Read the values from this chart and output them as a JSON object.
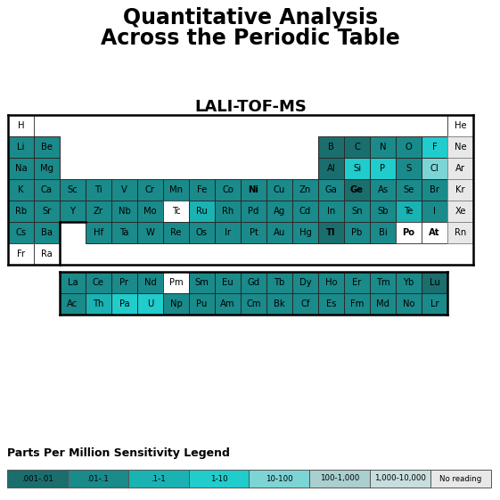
{
  "title_line1": "Quantitative Analysis",
  "title_line2": "Across the Periodic Table",
  "subtitle": "LALI-TOF-MS",
  "legend_labels": [
    ".001-.01",
    ".01-.1",
    ".1-1",
    "1-10",
    "10-100",
    "100-1,000",
    "1,000-10,000",
    "No reading"
  ],
  "legend_colors": [
    "#1a6e6e",
    "#1a8a8a",
    "#1ab2b2",
    "#20cccc",
    "#7dd4d4",
    "#aacfcf",
    "#c8dede",
    "#e8e8e8"
  ],
  "colors": {
    "dark1": "#1a6e6e",
    "dark2": "#1a8a8a",
    "med": "#1ab2b2",
    "bright": "#20cccc",
    "light": "#7dd4d4",
    "vlight": "#aacfcf",
    "pale": "#c8dede",
    "white": "#ffffff",
    "noread": "#e8e8e8"
  },
  "bold_elements": [
    "Ni",
    "Ge",
    "Tl",
    "Po",
    "At"
  ],
  "elements": {
    "H": {
      "row": 0,
      "col": 0,
      "color": "white"
    },
    "He": {
      "row": 0,
      "col": 17,
      "color": "white"
    },
    "Li": {
      "row": 1,
      "col": 0,
      "color": "dark2"
    },
    "Be": {
      "row": 1,
      "col": 1,
      "color": "dark2"
    },
    "B": {
      "row": 1,
      "col": 12,
      "color": "dark1"
    },
    "C": {
      "row": 1,
      "col": 13,
      "color": "dark1"
    },
    "N": {
      "row": 1,
      "col": 14,
      "color": "dark2"
    },
    "O": {
      "row": 1,
      "col": 15,
      "color": "dark2"
    },
    "F": {
      "row": 1,
      "col": 16,
      "color": "bright"
    },
    "Ne": {
      "row": 1,
      "col": 17,
      "color": "noread"
    },
    "Na": {
      "row": 2,
      "col": 0,
      "color": "dark2"
    },
    "Mg": {
      "row": 2,
      "col": 1,
      "color": "dark2"
    },
    "Al": {
      "row": 2,
      "col": 12,
      "color": "dark1"
    },
    "Si": {
      "row": 2,
      "col": 13,
      "color": "bright"
    },
    "P": {
      "row": 2,
      "col": 14,
      "color": "bright"
    },
    "S": {
      "row": 2,
      "col": 15,
      "color": "dark2"
    },
    "Cl": {
      "row": 2,
      "col": 16,
      "color": "light"
    },
    "Ar": {
      "row": 2,
      "col": 17,
      "color": "noread"
    },
    "K": {
      "row": 3,
      "col": 0,
      "color": "dark2"
    },
    "Ca": {
      "row": 3,
      "col": 1,
      "color": "dark2"
    },
    "Sc": {
      "row": 3,
      "col": 2,
      "color": "dark2"
    },
    "Ti": {
      "row": 3,
      "col": 3,
      "color": "dark2"
    },
    "V": {
      "row": 3,
      "col": 4,
      "color": "dark2"
    },
    "Cr": {
      "row": 3,
      "col": 5,
      "color": "dark2"
    },
    "Mn": {
      "row": 3,
      "col": 6,
      "color": "dark2"
    },
    "Fe": {
      "row": 3,
      "col": 7,
      "color": "dark2"
    },
    "Co": {
      "row": 3,
      "col": 8,
      "color": "dark2"
    },
    "Ni": {
      "row": 3,
      "col": 9,
      "color": "dark2"
    },
    "Cu": {
      "row": 3,
      "col": 10,
      "color": "dark2"
    },
    "Zn": {
      "row": 3,
      "col": 11,
      "color": "dark2"
    },
    "Ga": {
      "row": 3,
      "col": 12,
      "color": "dark2"
    },
    "Ge": {
      "row": 3,
      "col": 13,
      "color": "dark1"
    },
    "As": {
      "row": 3,
      "col": 14,
      "color": "dark2"
    },
    "Se": {
      "row": 3,
      "col": 15,
      "color": "dark2"
    },
    "Br": {
      "row": 3,
      "col": 16,
      "color": "dark2"
    },
    "Kr": {
      "row": 3,
      "col": 17,
      "color": "noread"
    },
    "Rb": {
      "row": 4,
      "col": 0,
      "color": "dark2"
    },
    "Sr": {
      "row": 4,
      "col": 1,
      "color": "dark2"
    },
    "Y": {
      "row": 4,
      "col": 2,
      "color": "dark2"
    },
    "Zr": {
      "row": 4,
      "col": 3,
      "color": "dark2"
    },
    "Nb": {
      "row": 4,
      "col": 4,
      "color": "dark2"
    },
    "Mo": {
      "row": 4,
      "col": 5,
      "color": "dark2"
    },
    "Tc": {
      "row": 4,
      "col": 6,
      "color": "white"
    },
    "Ru": {
      "row": 4,
      "col": 7,
      "color": "med"
    },
    "Rh": {
      "row": 4,
      "col": 8,
      "color": "dark2"
    },
    "Pd": {
      "row": 4,
      "col": 9,
      "color": "dark2"
    },
    "Ag": {
      "row": 4,
      "col": 10,
      "color": "dark2"
    },
    "Cd": {
      "row": 4,
      "col": 11,
      "color": "dark2"
    },
    "In": {
      "row": 4,
      "col": 12,
      "color": "dark2"
    },
    "Sn": {
      "row": 4,
      "col": 13,
      "color": "dark2"
    },
    "Sb": {
      "row": 4,
      "col": 14,
      "color": "dark2"
    },
    "Te": {
      "row": 4,
      "col": 15,
      "color": "med"
    },
    "I": {
      "row": 4,
      "col": 16,
      "color": "dark2"
    },
    "Xe": {
      "row": 4,
      "col": 17,
      "color": "noread"
    },
    "Cs": {
      "row": 5,
      "col": 0,
      "color": "dark2"
    },
    "Ba": {
      "row": 5,
      "col": 1,
      "color": "dark2"
    },
    "Hf": {
      "row": 5,
      "col": 3,
      "color": "dark2"
    },
    "Ta": {
      "row": 5,
      "col": 4,
      "color": "dark2"
    },
    "W": {
      "row": 5,
      "col": 5,
      "color": "dark2"
    },
    "Re": {
      "row": 5,
      "col": 6,
      "color": "dark2"
    },
    "Os": {
      "row": 5,
      "col": 7,
      "color": "dark2"
    },
    "Ir": {
      "row": 5,
      "col": 8,
      "color": "dark2"
    },
    "Pt": {
      "row": 5,
      "col": 9,
      "color": "dark2"
    },
    "Au": {
      "row": 5,
      "col": 10,
      "color": "dark2"
    },
    "Hg": {
      "row": 5,
      "col": 11,
      "color": "dark2"
    },
    "Tl": {
      "row": 5,
      "col": 12,
      "color": "dark1"
    },
    "Pb": {
      "row": 5,
      "col": 13,
      "color": "dark2"
    },
    "Bi": {
      "row": 5,
      "col": 14,
      "color": "dark2"
    },
    "Po": {
      "row": 5,
      "col": 15,
      "color": "white"
    },
    "At": {
      "row": 5,
      "col": 16,
      "color": "white"
    },
    "Rn": {
      "row": 5,
      "col": 17,
      "color": "noread"
    },
    "Fr": {
      "row": 6,
      "col": 0,
      "color": "white"
    },
    "Ra": {
      "row": 6,
      "col": 1,
      "color": "white"
    },
    "La": {
      "row": 8,
      "col": 0,
      "color": "dark2"
    },
    "Ce": {
      "row": 8,
      "col": 1,
      "color": "dark2"
    },
    "Pr": {
      "row": 8,
      "col": 2,
      "color": "dark2"
    },
    "Nd": {
      "row": 8,
      "col": 3,
      "color": "dark2"
    },
    "Pm": {
      "row": 8,
      "col": 4,
      "color": "white"
    },
    "Sm": {
      "row": 8,
      "col": 5,
      "color": "dark2"
    },
    "Eu": {
      "row": 8,
      "col": 6,
      "color": "dark2"
    },
    "Gd": {
      "row": 8,
      "col": 7,
      "color": "dark2"
    },
    "Tb": {
      "row": 8,
      "col": 8,
      "color": "dark2"
    },
    "Dy": {
      "row": 8,
      "col": 9,
      "color": "dark2"
    },
    "Ho": {
      "row": 8,
      "col": 10,
      "color": "dark2"
    },
    "Er": {
      "row": 8,
      "col": 11,
      "color": "dark2"
    },
    "Tm": {
      "row": 8,
      "col": 12,
      "color": "dark2"
    },
    "Yb": {
      "row": 8,
      "col": 13,
      "color": "dark2"
    },
    "Lu": {
      "row": 8,
      "col": 14,
      "color": "dark1"
    },
    "Ac": {
      "row": 9,
      "col": 0,
      "color": "dark2"
    },
    "Th": {
      "row": 9,
      "col": 1,
      "color": "med"
    },
    "Pa": {
      "row": 9,
      "col": 2,
      "color": "bright"
    },
    "U": {
      "row": 9,
      "col": 3,
      "color": "bright"
    },
    "Np": {
      "row": 9,
      "col": 4,
      "color": "dark2"
    },
    "Pu": {
      "row": 9,
      "col": 5,
      "color": "dark2"
    },
    "Am": {
      "row": 9,
      "col": 6,
      "color": "dark2"
    },
    "Cm": {
      "row": 9,
      "col": 7,
      "color": "dark2"
    },
    "Bk": {
      "row": 9,
      "col": 8,
      "color": "dark2"
    },
    "Cf": {
      "row": 9,
      "col": 9,
      "color": "dark2"
    },
    "Es": {
      "row": 9,
      "col": 10,
      "color": "dark2"
    },
    "Fm": {
      "row": 9,
      "col": 11,
      "color": "dark2"
    },
    "Md": {
      "row": 9,
      "col": 12,
      "color": "dark2"
    },
    "No": {
      "row": 9,
      "col": 13,
      "color": "dark2"
    },
    "Lr": {
      "row": 9,
      "col": 14,
      "color": "dark2"
    }
  }
}
